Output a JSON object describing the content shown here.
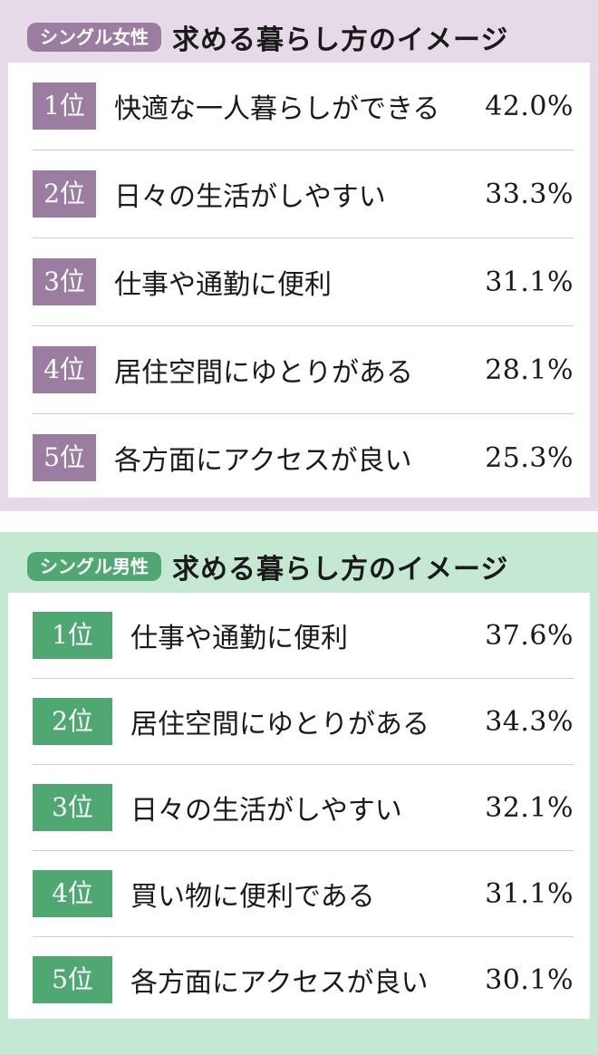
{
  "female": {
    "tag": "シングル女性",
    "title": "求める暮らし方のイメージ",
    "colors": {
      "accent": "#9b7da1",
      "background": "#e6d9e8"
    },
    "rows": [
      {
        "rank": "1位",
        "label": "快適な一人暮らしができる",
        "percent": "42.0%"
      },
      {
        "rank": "2位",
        "label": "日々の生活がしやすい",
        "percent": "33.3%"
      },
      {
        "rank": "3位",
        "label": "仕事や通勤に便利",
        "percent": "31.1%"
      },
      {
        "rank": "4位",
        "label": "居住空間にゆとりがある",
        "percent": "28.1%"
      },
      {
        "rank": "5位",
        "label": "各方面にアクセスが良い",
        "percent": "25.3%"
      }
    ]
  },
  "male": {
    "tag": "シングル男性",
    "title": "求める暮らし方のイメージ",
    "colors": {
      "accent": "#4fa872",
      "background": "#c4e8d2"
    },
    "rows": [
      {
        "rank": "1位",
        "label": "仕事や通勤に便利",
        "percent": "37.6%"
      },
      {
        "rank": "2位",
        "label": "居住空間にゆとりがある",
        "percent": "34.3%"
      },
      {
        "rank": "3位",
        "label": "日々の生活がしやすい",
        "percent": "32.1%"
      },
      {
        "rank": "4位",
        "label": "買い物に便利である",
        "percent": "31.1%"
      },
      {
        "rank": "5位",
        "label": "各方面にアクセスが良い",
        "percent": "30.1%"
      }
    ]
  }
}
